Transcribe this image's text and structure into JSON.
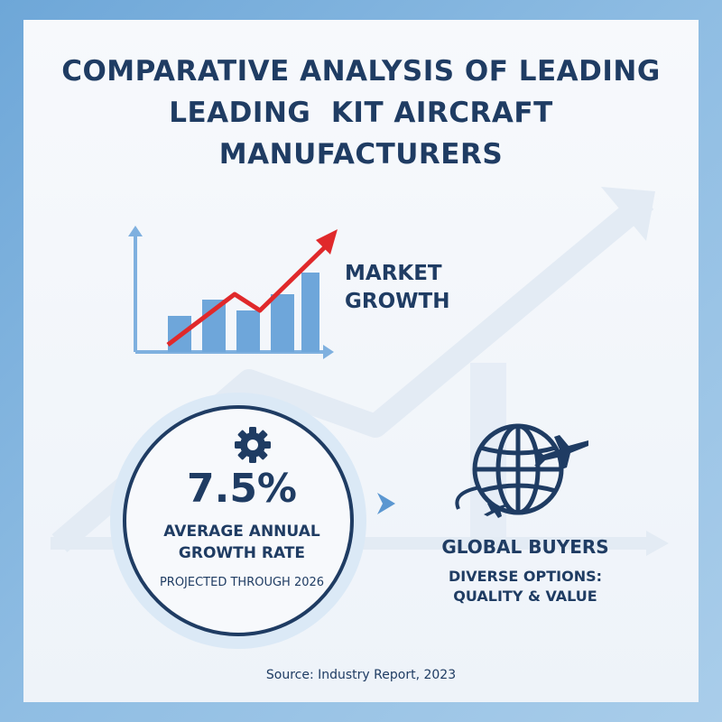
{
  "title": {
    "lines": [
      "COMPARATIVE ANALYSIS OF LEADING",
      "LEADING  KIT AIRCRAFT",
      "MANUFACTURERS"
    ]
  },
  "market": {
    "label_lines": [
      "MARKET",
      "GROWTH"
    ],
    "icon": "bar-chart-up-trend-icon"
  },
  "stat": {
    "value": "7.5%",
    "label_lines": [
      "AVERAGE ANNUAL",
      "GROWTH RATE"
    ],
    "sub": "PROJECTED THROUGH 2026",
    "icon": "gear-icon"
  },
  "buyers": {
    "title": "GLOBAL BUYERS",
    "sub_lines": [
      "DIVERSE OPTIONS:",
      "QUALITY & VALUE"
    ],
    "icon": "globe-airplane-icon"
  },
  "source": "Source: Industry Report, 2023",
  "colors": {
    "navy": "#1f3c63",
    "blue": "#5b97d1",
    "light_blue": "#9cc3e6",
    "red": "#e0292b",
    "frame": "#7fb2de"
  }
}
